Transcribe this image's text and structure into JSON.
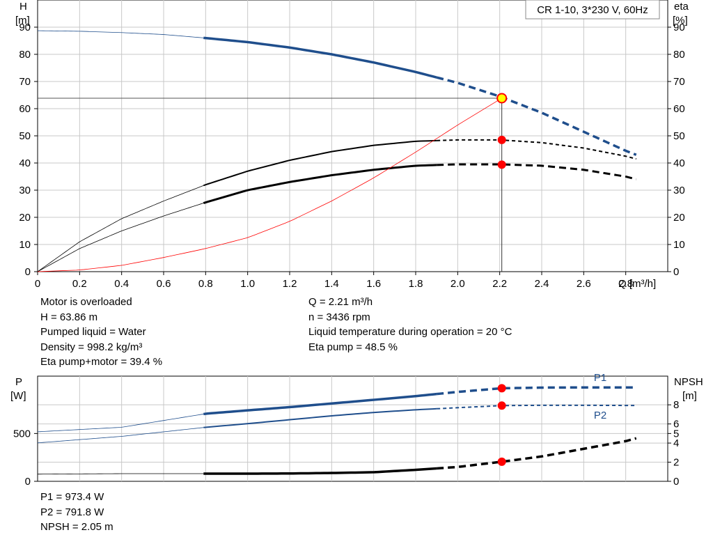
{
  "chart_data": [
    {
      "type": "line",
      "title": "CR 1-10, 3*230 V, 60Hz",
      "xlabel": "Q [m³/h]",
      "ylabel_left_name": "H",
      "ylabel_left_unit": "[m]",
      "ylabel_right_name": "eta",
      "ylabel_right_unit": "[%]",
      "xlim": [
        0,
        3.0
      ],
      "ylim": [
        0,
        100
      ],
      "x_ticks": [
        "0",
        "0.2",
        "0.4",
        "0.6",
        "0.8",
        "1.0",
        "1.2",
        "1.4",
        "1.6",
        "1.8",
        "2.0",
        "2.2",
        "2.4",
        "2.6",
        "2.8"
      ],
      "y_ticks": [
        "0",
        "10",
        "20",
        "30",
        "40",
        "50",
        "60",
        "70",
        "80",
        "90"
      ],
      "grid": true,
      "series": [
        {
          "role": "head",
          "color": "#1f4e8c",
          "points": [
            [
              0,
              88.7
            ],
            [
              0.2,
              88.5
            ],
            [
              0.4,
              88.0
            ],
            [
              0.6,
              87.3
            ],
            [
              0.8,
              86.0
            ],
            [
              1.0,
              84.5
            ],
            [
              1.2,
              82.5
            ],
            [
              1.4,
              80.0
            ],
            [
              1.6,
              77.0
            ],
            [
              1.8,
              73.5
            ],
            [
              2.0,
              69.5
            ],
            [
              2.2,
              64.5
            ],
            [
              2.4,
              58.5
            ],
            [
              2.6,
              51.5
            ],
            [
              2.8,
              44.5
            ],
            [
              2.85,
              43.0
            ]
          ]
        },
        {
          "role": "eta-pump",
          "color": "#000000",
          "points": [
            [
              0,
              0
            ],
            [
              0.2,
              11.0
            ],
            [
              0.4,
              19.5
            ],
            [
              0.6,
              26.0
            ],
            [
              0.8,
              32.0
            ],
            [
              1.0,
              37.0
            ],
            [
              1.2,
              41.0
            ],
            [
              1.4,
              44.2
            ],
            [
              1.6,
              46.5
            ],
            [
              1.8,
              48.0
            ],
            [
              2.0,
              48.5
            ],
            [
              2.2,
              48.5
            ],
            [
              2.4,
              47.5
            ],
            [
              2.6,
              45.5
            ],
            [
              2.8,
              42.5
            ],
            [
              2.85,
              41.5
            ]
          ]
        },
        {
          "role": "eta-pump-motor",
          "color": "#000000",
          "points": [
            [
              0,
              0
            ],
            [
              0.2,
              8.5
            ],
            [
              0.4,
              15.0
            ],
            [
              0.6,
              20.5
            ],
            [
              0.8,
              25.5
            ],
            [
              1.0,
              30.0
            ],
            [
              1.2,
              33.0
            ],
            [
              1.4,
              35.5
            ],
            [
              1.6,
              37.5
            ],
            [
              1.8,
              39.0
            ],
            [
              2.0,
              39.5
            ],
            [
              2.2,
              39.5
            ],
            [
              2.4,
              39.0
            ],
            [
              2.6,
              37.5
            ],
            [
              2.8,
              35.0
            ],
            [
              2.85,
              34.0
            ]
          ]
        },
        {
          "role": "system-curve",
          "color": "#ff0000",
          "points": [
            [
              0,
              0
            ],
            [
              0.2,
              0.6
            ],
            [
              0.4,
              2.3
            ],
            [
              0.6,
              5.2
            ],
            [
              0.8,
              8.5
            ],
            [
              1.0,
              12.5
            ],
            [
              1.2,
              18.5
            ],
            [
              1.4,
              26.0
            ],
            [
              1.6,
              34.5
            ],
            [
              1.8,
              44.0
            ],
            [
              2.0,
              54.0
            ],
            [
              2.21,
              63.86
            ]
          ]
        }
      ],
      "duty_point": {
        "q": 2.21,
        "h": 63.86,
        "eta_pump": 48.5,
        "eta_pump_motor": 39.4
      },
      "solid_range": [
        0.79,
        1.9
      ],
      "dashed_from": 1.9
    },
    {
      "type": "line",
      "ylabel_left_name": "P",
      "ylabel_left_unit": "[W]",
      "ylabel_right_name": "NPSH",
      "ylabel_right_unit": "[m]",
      "xlim": [
        0,
        3.0
      ],
      "p_ylim": [
        0,
        1100
      ],
      "npsh_ylim": [
        0,
        11
      ],
      "p_ticks": [
        "0",
        "500"
      ],
      "npsh_ticks": [
        "0",
        "2",
        "4",
        "5",
        "6",
        "8"
      ],
      "grid": true,
      "series": [
        {
          "name": "P1",
          "axis": "left",
          "color": "#1f4e8c",
          "points": [
            [
              0,
              518
            ],
            [
              0.4,
              565
            ],
            [
              0.8,
              707
            ],
            [
              1.0,
              742
            ],
            [
              1.2,
              776
            ],
            [
              1.4,
              814
            ],
            [
              1.6,
              852
            ],
            [
              1.8,
              891
            ],
            [
              2.0,
              935
            ],
            [
              2.21,
              973.4
            ],
            [
              2.4,
              980
            ],
            [
              2.6,
              982
            ],
            [
              2.85,
              982
            ]
          ]
        },
        {
          "name": "P2",
          "axis": "left",
          "color": "#1f4e8c",
          "points": [
            [
              0,
              402
            ],
            [
              0.4,
              470
            ],
            [
              0.8,
              565
            ],
            [
              1.0,
              603
            ],
            [
              1.2,
              644
            ],
            [
              1.4,
              685
            ],
            [
              1.6,
              720
            ],
            [
              1.8,
              748
            ],
            [
              2.0,
              770
            ],
            [
              2.21,
              791.8
            ],
            [
              2.4,
              795
            ],
            [
              2.6,
              795
            ],
            [
              2.85,
              793
            ]
          ]
        },
        {
          "role": "npsh",
          "axis": "right",
          "color": "#000000",
          "points": [
            [
              0,
              0.75
            ],
            [
              0.4,
              0.8
            ],
            [
              0.8,
              0.8
            ],
            [
              1.0,
              0.8
            ],
            [
              1.2,
              0.82
            ],
            [
              1.4,
              0.87
            ],
            [
              1.6,
              0.95
            ],
            [
              1.8,
              1.2
            ],
            [
              2.0,
              1.5
            ],
            [
              2.21,
              2.05
            ],
            [
              2.4,
              2.6
            ],
            [
              2.6,
              3.4
            ],
            [
              2.8,
              4.2
            ],
            [
              2.85,
              4.5
            ]
          ]
        }
      ],
      "duty_point": {
        "q": 2.21,
        "p1": 973.4,
        "p2": 791.8,
        "npsh": 2.05
      }
    }
  ],
  "info": {
    "left": [
      "Motor is overloaded",
      "H = 63.86 m",
      "Pumped liquid = Water",
      "Density = 998.2 kg/m³",
      "Eta pump+motor = 39.4 %"
    ],
    "right": [
      "Q = 2.21 m³/h",
      "n = 3436 rpm",
      "Liquid temperature during operation = 20 °C",
      "Eta pump = 48.5 %"
    ],
    "bottom": [
      "P1 = 973.4 W",
      "P2 = 791.8 W",
      "NPSH = 2.05 m"
    ]
  }
}
